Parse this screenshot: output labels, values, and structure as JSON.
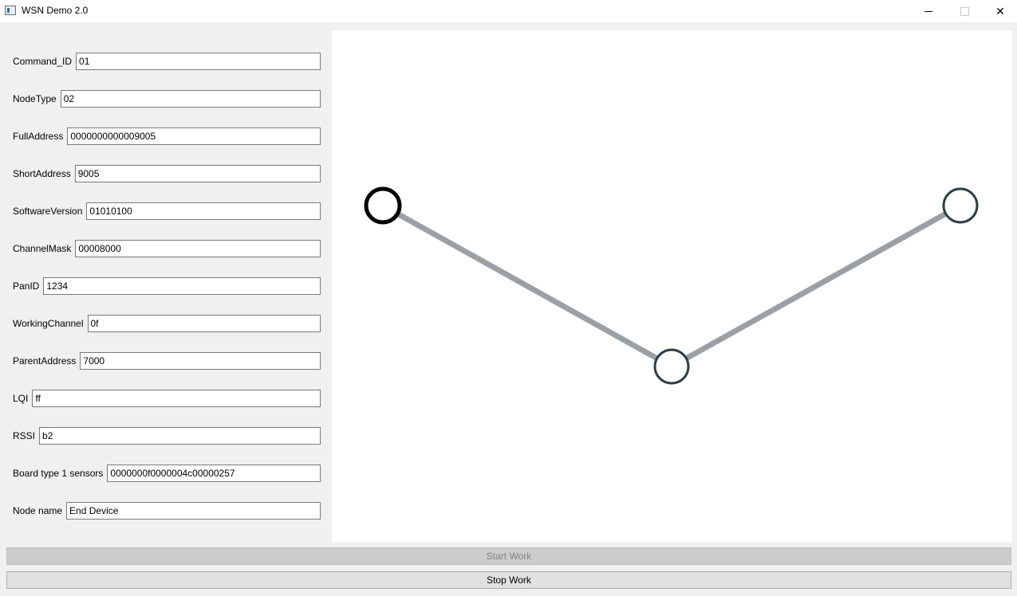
{
  "window": {
    "title": "WSN Demo 2.0",
    "controls": [
      "minimize",
      "maximize",
      "close"
    ],
    "close_glyph": "✕"
  },
  "form": {
    "fields": [
      {
        "label": "Command_ID",
        "value": "01"
      },
      {
        "label": "NodeType",
        "value": "02"
      },
      {
        "label": "FullAddress",
        "value": "0000000000009005"
      },
      {
        "label": "ShortAddress",
        "value": "9005"
      },
      {
        "label": "SoftwareVersion",
        "value": "01010100"
      },
      {
        "label": "ChannelMask",
        "value": "00008000"
      },
      {
        "label": "PanID",
        "value": "1234"
      },
      {
        "label": "WorkingChannel",
        "value": "0f"
      },
      {
        "label": "ParentAddress",
        "value": "7000"
      },
      {
        "label": "LQI",
        "value": "ff"
      },
      {
        "label": "RSSI",
        "value": "b2"
      },
      {
        "label": "Board type 1 sensors",
        "value": "0000000f0000004c00000257"
      },
      {
        "label": "Node name",
        "value": "End Device"
      }
    ]
  },
  "network_graph": {
    "nodes": [
      {
        "id": "node-left",
        "selected": true,
        "color": "#000000"
      },
      {
        "id": "node-bottom",
        "selected": false,
        "color": "#2c3e48"
      },
      {
        "id": "node-right",
        "selected": false,
        "color": "#2c3e48"
      }
    ],
    "links": [
      {
        "from": "node-left",
        "to": "node-bottom"
      },
      {
        "from": "node-bottom",
        "to": "node-right"
      }
    ],
    "link_color": "#9aa0a6"
  },
  "buttons": {
    "start_label": "Start Work",
    "start_enabled": false,
    "stop_label": "Stop Work",
    "stop_enabled": true
  }
}
